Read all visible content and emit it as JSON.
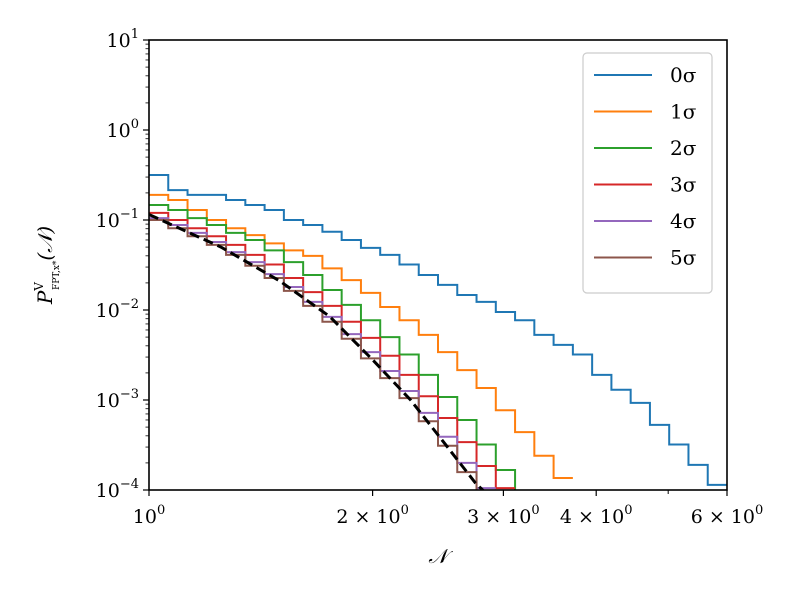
{
  "chart_data": {
    "type": "line",
    "style": "step histogram",
    "xscale": "log",
    "yscale": "log",
    "xlim": [
      1,
      6
    ],
    "ylim": [
      0.0001,
      10
    ],
    "grid": false,
    "legend_placement": "top-right",
    "xlabel": "𝒩",
    "ylabel": {
      "base": "P",
      "sup": "V",
      "sub": "FPT,x*",
      "arg": "(𝒩)"
    },
    "x_ticks": [
      {
        "value": 1,
        "mantissa": "",
        "base": "10",
        "exp": "0"
      },
      {
        "value": 2,
        "mantissa": "2 × ",
        "base": "10",
        "exp": "0"
      },
      {
        "value": 3,
        "mantissa": "3 × ",
        "base": "10",
        "exp": "0"
      },
      {
        "value": 4,
        "mantissa": "4 × ",
        "base": "10",
        "exp": "0"
      },
      {
        "value": 6,
        "mantissa": "6 × ",
        "base": "10",
        "exp": "0"
      }
    ],
    "x_minor_ticks": [
      5
    ],
    "y_ticks": [
      {
        "value": 10,
        "base": "10",
        "exp": "1"
      },
      {
        "value": 1,
        "base": "10",
        "exp": "0"
      },
      {
        "value": 0.1,
        "base": "10",
        "exp": "−1"
      },
      {
        "value": 0.01,
        "base": "10",
        "exp": "−2"
      },
      {
        "value": 0.001,
        "base": "10",
        "exp": "−3"
      },
      {
        "value": 0.0001,
        "base": "10",
        "exp": "−4"
      }
    ],
    "bin_edges": [
      1,
      1.0615,
      1.1269,
      1.1962,
      1.2698,
      1.348,
      1.431,
      1.5191,
      1.6126,
      1.7118,
      1.8171,
      1.929,
      2.0477,
      2.1737,
      2.3075,
      2.4495,
      2.6002,
      2.7603,
      2.9302,
      3.1105,
      3.3019,
      3.5051,
      3.7209,
      3.9499,
      4.193,
      4.451,
      4.7249,
      5.0157,
      5.3244,
      5.6521,
      6.0
    ],
    "series": [
      {
        "name": "0σ",
        "color": "#1f77b4",
        "values": [
          0.316,
          0.215,
          0.19,
          0.19,
          0.167,
          0.147,
          0.129,
          0.1,
          0.088,
          0.074,
          0.06,
          0.049,
          0.041,
          0.032,
          0.0245,
          0.019,
          0.0147,
          0.0123,
          0.0095,
          0.0077,
          0.0053,
          0.0041,
          0.0032,
          0.0019,
          0.0013,
          0.00093,
          0.00053,
          0.00032,
          0.00019,
          0.000114
        ]
      },
      {
        "name": "1σ",
        "color": "#ff7f0e",
        "values": [
          0.19,
          0.167,
          0.129,
          0.1,
          0.081,
          0.068,
          0.055,
          0.046,
          0.04,
          0.029,
          0.0215,
          0.0155,
          0.0108,
          0.0077,
          0.0053,
          0.0034,
          0.00215,
          0.00136,
          0.00077,
          0.00044,
          0.00024,
          0.000136
        ]
      },
      {
        "name": "2σ",
        "color": "#2ca02c",
        "values": [
          0.147,
          0.129,
          0.105,
          0.088,
          0.072,
          0.06,
          0.046,
          0.034,
          0.0245,
          0.0167,
          0.0114,
          0.0077,
          0.005,
          0.0032,
          0.0019,
          0.00108,
          0.0006,
          0.00032,
          0.000167,
          9e-05
        ]
      },
      {
        "name": "3σ",
        "color": "#d62728",
        "values": [
          0.12,
          0.1,
          0.081,
          0.066,
          0.053,
          0.041,
          0.032,
          0.0227,
          0.0158,
          0.0111,
          0.0074,
          0.0049,
          0.0031,
          0.0019,
          0.0011,
          0.00063,
          0.00034,
          0.000185,
          0.000105
        ]
      },
      {
        "name": "4σ",
        "color": "#9467bd",
        "values": [
          0.105,
          0.088,
          0.072,
          0.057,
          0.044,
          0.034,
          0.025,
          0.018,
          0.0123,
          0.0084,
          0.0054,
          0.0034,
          0.0021,
          0.00126,
          0.00072,
          0.00039,
          0.0002,
          0.000105
        ]
      },
      {
        "name": "5σ",
        "color": "#8c564b",
        "values": [
          0.1,
          0.081,
          0.066,
          0.053,
          0.041,
          0.031,
          0.0227,
          0.0163,
          0.0111,
          0.0074,
          0.0048,
          0.0029,
          0.00175,
          0.00105,
          0.00058,
          0.00031,
          0.000158,
          8.9e-05
        ]
      }
    ],
    "reference_curve": {
      "style": "dashed",
      "color": "#000000",
      "x": [
        1,
        1.25,
        1.5,
        1.75,
        2,
        2.25,
        2.5,
        2.75,
        2.85
      ],
      "y": [
        0.115,
        0.05,
        0.021,
        0.0085,
        0.0028,
        0.001,
        0.00033,
        0.00012,
        9e-05
      ]
    }
  }
}
